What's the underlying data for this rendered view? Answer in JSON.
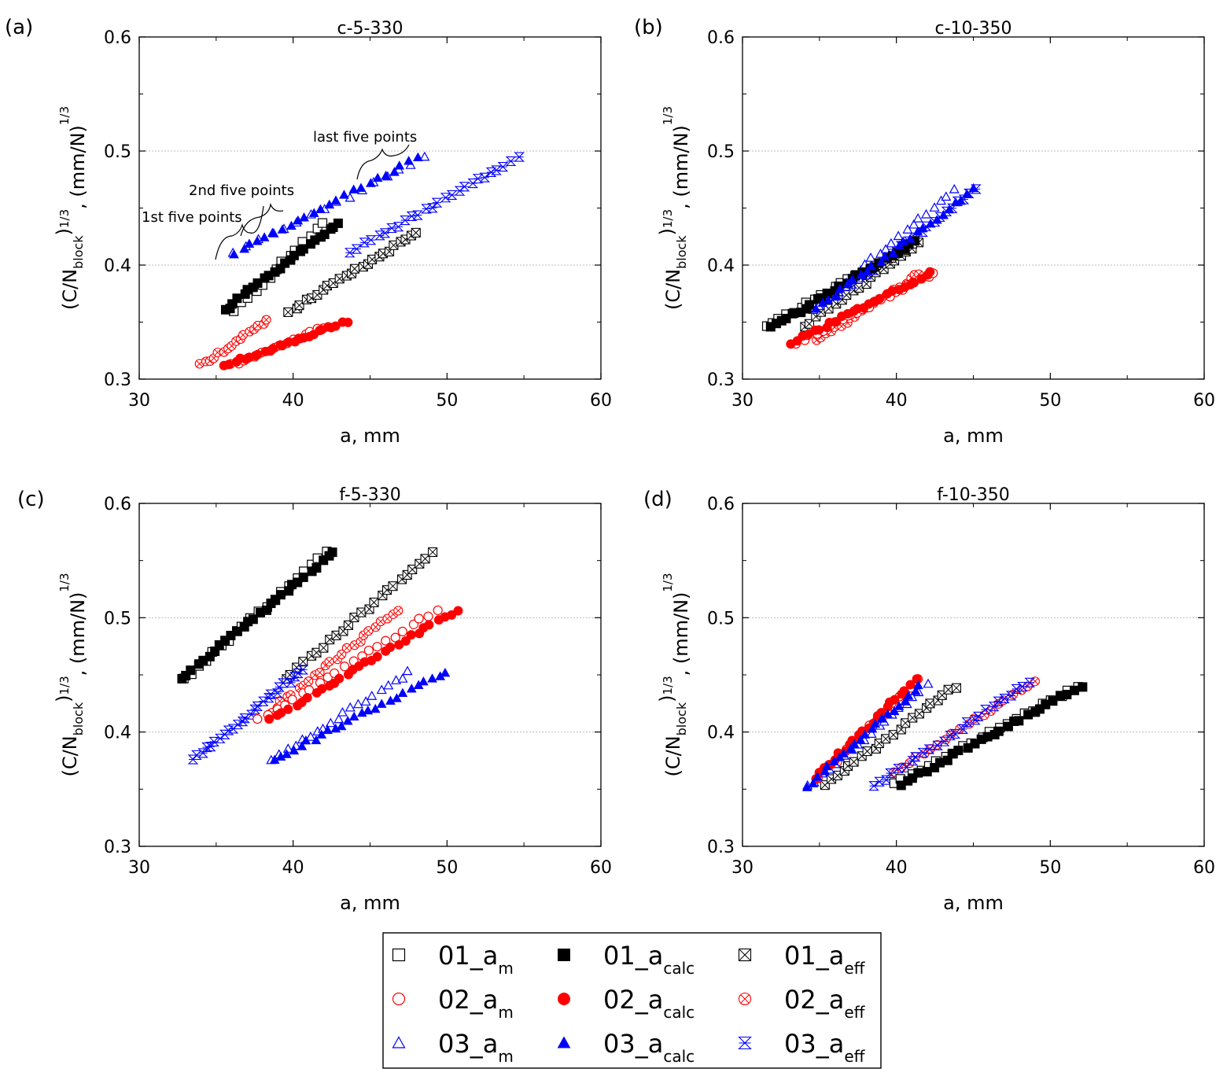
{
  "chart_data": [
    {
      "panel_label": "(a)",
      "title": "c-5-330",
      "type": "scatter",
      "xlabel": "a, mm",
      "ylabel_parts": [
        "(C/N",
        "block",
        ")",
        "1/3",
        ", (mm/N)",
        "1/3"
      ],
      "xlim": [
        30,
        60
      ],
      "ylim": [
        0.3,
        0.6
      ],
      "xticks": [
        30,
        40,
        50,
        60
      ],
      "yticks": [
        0.3,
        0.4,
        0.5,
        0.6
      ],
      "grid": "dotted horizontal at 0.4 and 0.5",
      "annotations": [
        "1st five points",
        "2nd five points",
        "last five points"
      ],
      "series": [
        {
          "name": "01_a_m",
          "x0": 36.2,
          "x1": 42.0,
          "y0": 0.36,
          "y1": 0.438,
          "n": 14
        },
        {
          "name": "01_a_calc",
          "x0": 35.5,
          "x1": 43.0,
          "y0": 0.36,
          "y1": 0.438,
          "n": 24
        },
        {
          "name": "01_a_eff",
          "x0": 39.8,
          "x1": 48.0,
          "y0": 0.36,
          "y1": 0.428,
          "n": 24
        },
        {
          "name": "02_a_m",
          "x0": 36.0,
          "x1": 42.0,
          "y0": 0.312,
          "y1": 0.345,
          "n": 16
        },
        {
          "name": "02_a_calc",
          "x0": 35.6,
          "x1": 43.5,
          "y0": 0.312,
          "y1": 0.351,
          "n": 26
        },
        {
          "name": "02_a_eff",
          "x0": 34.0,
          "x1": 38.3,
          "y0": 0.312,
          "y1": 0.351,
          "n": 16
        },
        {
          "name": "03_a_m",
          "x0": 36.2,
          "x1": 48.5,
          "y0": 0.41,
          "y1": 0.494,
          "n": 16
        },
        {
          "name": "03_a_calc",
          "x0": 36.2,
          "x1": 48.0,
          "y0": 0.41,
          "y1": 0.494,
          "n": 24
        },
        {
          "name": "03_a_eff",
          "x0": 43.8,
          "x1": 54.6,
          "y0": 0.412,
          "y1": 0.494,
          "n": 26
        }
      ]
    },
    {
      "panel_label": "(b)",
      "title": "c-10-350",
      "type": "scatter",
      "xlabel": "a, mm",
      "ylabel_parts": [
        "(C/N",
        "block",
        ")",
        "1/3",
        ", (mm/N)",
        "1/3"
      ],
      "xlim": [
        30,
        60
      ],
      "ylim": [
        0.3,
        0.6
      ],
      "xticks": [
        30,
        40,
        50,
        60
      ],
      "yticks": [
        0.3,
        0.4,
        0.5,
        0.6
      ],
      "grid": "dotted horizontal at 0.4 and 0.5",
      "series": [
        {
          "name": "01_a_m",
          "x0": 31.5,
          "x1": 41.0,
          "y0": 0.345,
          "y1": 0.418,
          "n": 22
        },
        {
          "name": "01_a_calc",
          "x0": 31.8,
          "x1": 41.2,
          "y0": 0.345,
          "y1": 0.42,
          "n": 26
        },
        {
          "name": "01_a_eff",
          "x0": 34.0,
          "x1": 41.5,
          "y0": 0.346,
          "y1": 0.419,
          "n": 20
        },
        {
          "name": "02_a_m",
          "x0": 33.5,
          "x1": 42.5,
          "y0": 0.332,
          "y1": 0.393,
          "n": 22
        },
        {
          "name": "02_a_calc",
          "x0": 33.2,
          "x1": 42.3,
          "y0": 0.332,
          "y1": 0.393,
          "n": 26
        },
        {
          "name": "02_a_eff",
          "x0": 34.8,
          "x1": 41.5,
          "y0": 0.333,
          "y1": 0.393,
          "n": 22
        },
        {
          "name": "03_a_m",
          "x0": 34.5,
          "x1": 43.7,
          "y0": 0.36,
          "y1": 0.465,
          "n": 22
        },
        {
          "name": "03_a_calc",
          "x0": 34.8,
          "x1": 45.0,
          "y0": 0.362,
          "y1": 0.466,
          "n": 26
        },
        {
          "name": "03_a_eff",
          "x0": 36.0,
          "x1": 45.2,
          "y0": 0.372,
          "y1": 0.467,
          "n": 24
        }
      ]
    },
    {
      "panel_label": "(c)",
      "title": "f-5-330",
      "type": "scatter",
      "xlabel": "a, mm",
      "ylabel_parts": [
        "(C/N",
        "block",
        ")",
        "1/3",
        ", (mm/N)",
        "1/3"
      ],
      "xlim": [
        30,
        60
      ],
      "ylim": [
        0.3,
        0.6
      ],
      "xticks": [
        30,
        40,
        50,
        60
      ],
      "yticks": [
        0.3,
        0.4,
        0.5,
        0.6
      ],
      "grid": "dotted horizontal at 0.4 and 0.5",
      "series": [
        {
          "name": "01_a_m",
          "x0": 32.8,
          "x1": 42.2,
          "y0": 0.446,
          "y1": 0.557,
          "n": 20
        },
        {
          "name": "01_a_calc",
          "x0": 32.7,
          "x1": 42.6,
          "y0": 0.446,
          "y1": 0.557,
          "n": 28
        },
        {
          "name": "01_a_eff",
          "x0": 39.5,
          "x1": 49.1,
          "y0": 0.446,
          "y1": 0.557,
          "n": 24
        },
        {
          "name": "02_a_m",
          "x0": 37.8,
          "x1": 49.4,
          "y0": 0.41,
          "y1": 0.507,
          "n": 22
        },
        {
          "name": "02_a_calc",
          "x0": 38.5,
          "x1": 50.6,
          "y0": 0.41,
          "y1": 0.507,
          "n": 30
        },
        {
          "name": "02_a_eff",
          "x0": 38.5,
          "x1": 46.8,
          "y0": 0.418,
          "y1": 0.507,
          "n": 24
        },
        {
          "name": "03_a_m",
          "x0": 38.7,
          "x1": 47.5,
          "y0": 0.376,
          "y1": 0.452,
          "n": 20
        },
        {
          "name": "03_a_calc",
          "x0": 38.7,
          "x1": 49.9,
          "y0": 0.376,
          "y1": 0.452,
          "n": 26
        },
        {
          "name": "03_a_eff",
          "x0": 33.5,
          "x1": 40.6,
          "y0": 0.376,
          "y1": 0.454,
          "n": 26
        }
      ]
    },
    {
      "panel_label": "(d)",
      "title": "f-10-350",
      "type": "scatter",
      "xlabel": "a, mm",
      "ylabel_parts": [
        "(C/N",
        "block",
        ")",
        "1/3",
        ", (mm/N)",
        "1/3"
      ],
      "xlim": [
        30,
        60
      ],
      "ylim": [
        0.3,
        0.6
      ],
      "xticks": [
        30,
        40,
        50,
        60
      ],
      "yticks": [
        0.3,
        0.4,
        0.5,
        0.6
      ],
      "grid": "dotted horizontal at 0.4 and 0.5",
      "series": [
        {
          "name": "01_a_m",
          "x0": 39.8,
          "x1": 51.8,
          "y0": 0.354,
          "y1": 0.44,
          "n": 22
        },
        {
          "name": "01_a_calc",
          "x0": 40.2,
          "x1": 52.0,
          "y0": 0.354,
          "y1": 0.44,
          "n": 28
        },
        {
          "name": "01_a_eff",
          "x0": 35.3,
          "x1": 43.9,
          "y0": 0.354,
          "y1": 0.44,
          "n": 22
        },
        {
          "name": "02_a_m",
          "x0": 35.0,
          "x1": 41.3,
          "y0": 0.36,
          "y1": 0.445,
          "n": 18
        },
        {
          "name": "02_a_calc",
          "x0": 34.8,
          "x1": 41.2,
          "y0": 0.36,
          "y1": 0.445,
          "n": 22
        },
        {
          "name": "02_a_eff",
          "x0": 39.8,
          "x1": 49.0,
          "y0": 0.364,
          "y1": 0.445,
          "n": 20
        },
        {
          "name": "03_a_m",
          "x0": 34.3,
          "x1": 42.0,
          "y0": 0.352,
          "y1": 0.441,
          "n": 18
        },
        {
          "name": "03_a_calc",
          "x0": 34.2,
          "x1": 41.5,
          "y0": 0.352,
          "y1": 0.44,
          "n": 22
        },
        {
          "name": "03_a_eff",
          "x0": 38.5,
          "x1": 48.7,
          "y0": 0.352,
          "y1": 0.444,
          "n": 26
        }
      ]
    }
  ],
  "legend": {
    "placement": "bottom-center",
    "items": [
      {
        "id": "01_a_m",
        "main": "01_a",
        "sub": "m",
        "marker": "square-open",
        "color": "#000000"
      },
      {
        "id": "01_a_calc",
        "main": "01_a",
        "sub": "calc",
        "marker": "square-filled",
        "color": "#000000"
      },
      {
        "id": "01_a_eff",
        "main": "01_a",
        "sub": "eff",
        "marker": "square-x",
        "color": "#000000"
      },
      {
        "id": "02_a_m",
        "main": "02_a",
        "sub": "m",
        "marker": "circle-open",
        "color": "#ff0000"
      },
      {
        "id": "02_a_calc",
        "main": "02_a",
        "sub": "calc",
        "marker": "circle-filled",
        "color": "#ff0000"
      },
      {
        "id": "02_a_eff",
        "main": "02_a",
        "sub": "eff",
        "marker": "circle-x",
        "color": "#ff0000"
      },
      {
        "id": "03_a_m",
        "main": "03_a",
        "sub": "m",
        "marker": "triangle-open",
        "color": "#0000ff"
      },
      {
        "id": "03_a_calc",
        "main": "03_a",
        "sub": "calc",
        "marker": "triangle-filled",
        "color": "#0000ff"
      },
      {
        "id": "03_a_eff",
        "main": "03_a",
        "sub": "eff",
        "marker": "hourglass-x",
        "color": "#0000ff"
      }
    ]
  },
  "colors": {
    "series_01": "#000000",
    "series_02": "#ff0000",
    "series_03": "#0000ff",
    "grid": "#bbbbbb"
  }
}
